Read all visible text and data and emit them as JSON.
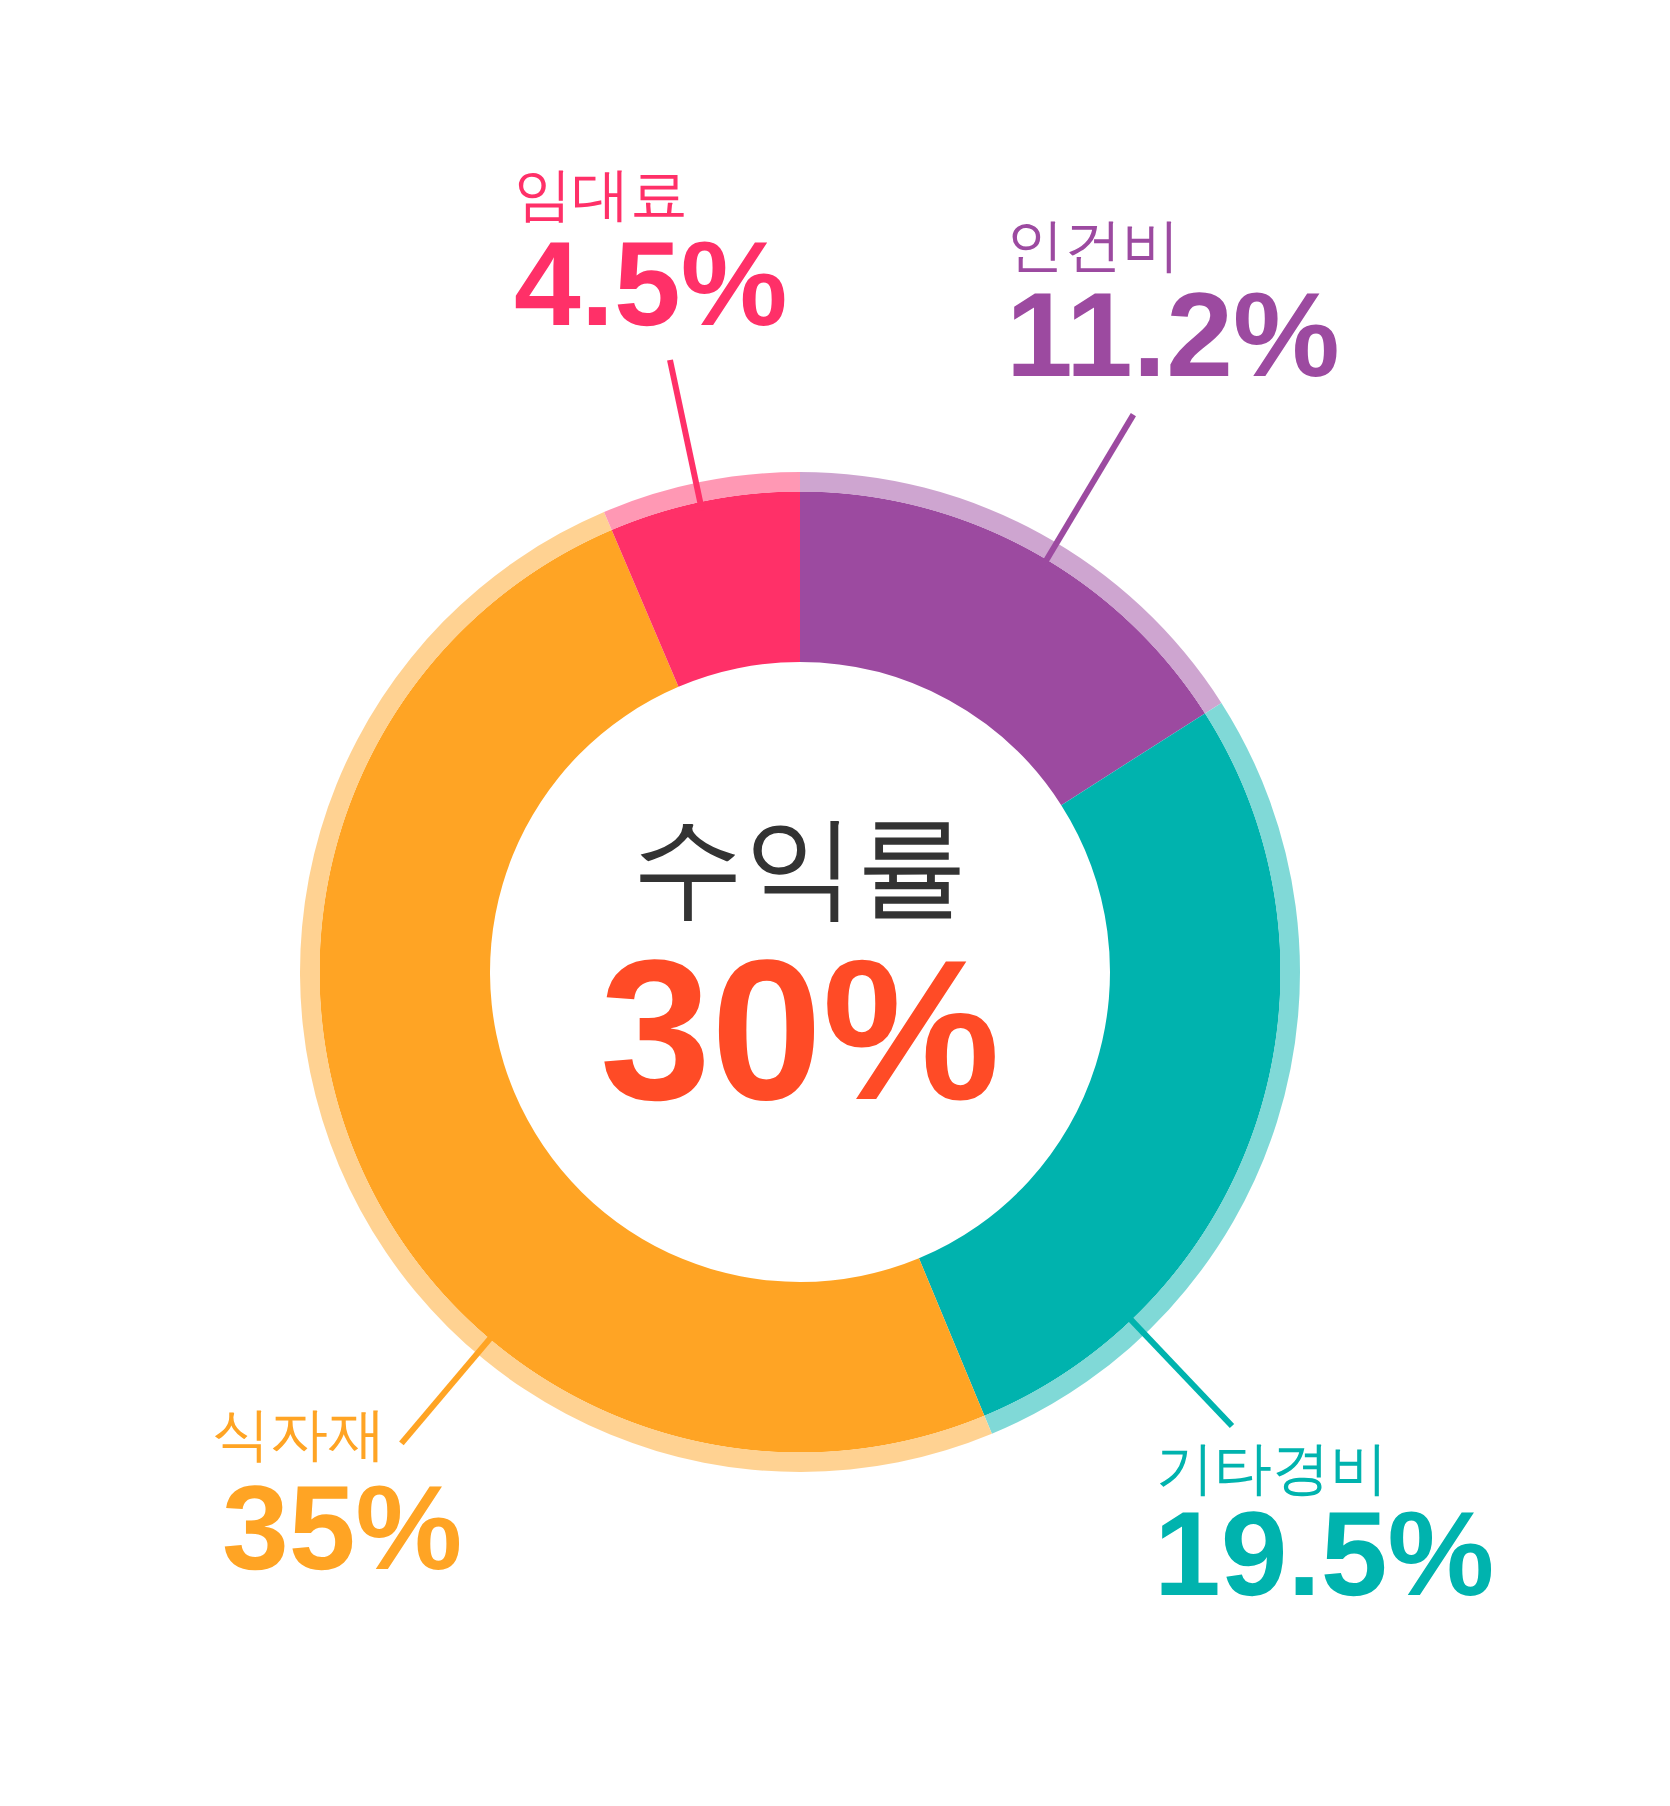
{
  "chart_data": {
    "type": "donut",
    "categories": [
      "인건비",
      "기타경비",
      "식자재",
      "임대료"
    ],
    "values": [
      11.2,
      19.5,
      35,
      4.5
    ],
    "colors": [
      "#9c4aa0",
      "#00b3ae",
      "#ffa424",
      "#ff3068"
    ],
    "value_labels": [
      "11.2%",
      "19.5%",
      "35%",
      "4.5%"
    ],
    "annotations": [
      "수익률",
      "30%"
    ]
  }
}
